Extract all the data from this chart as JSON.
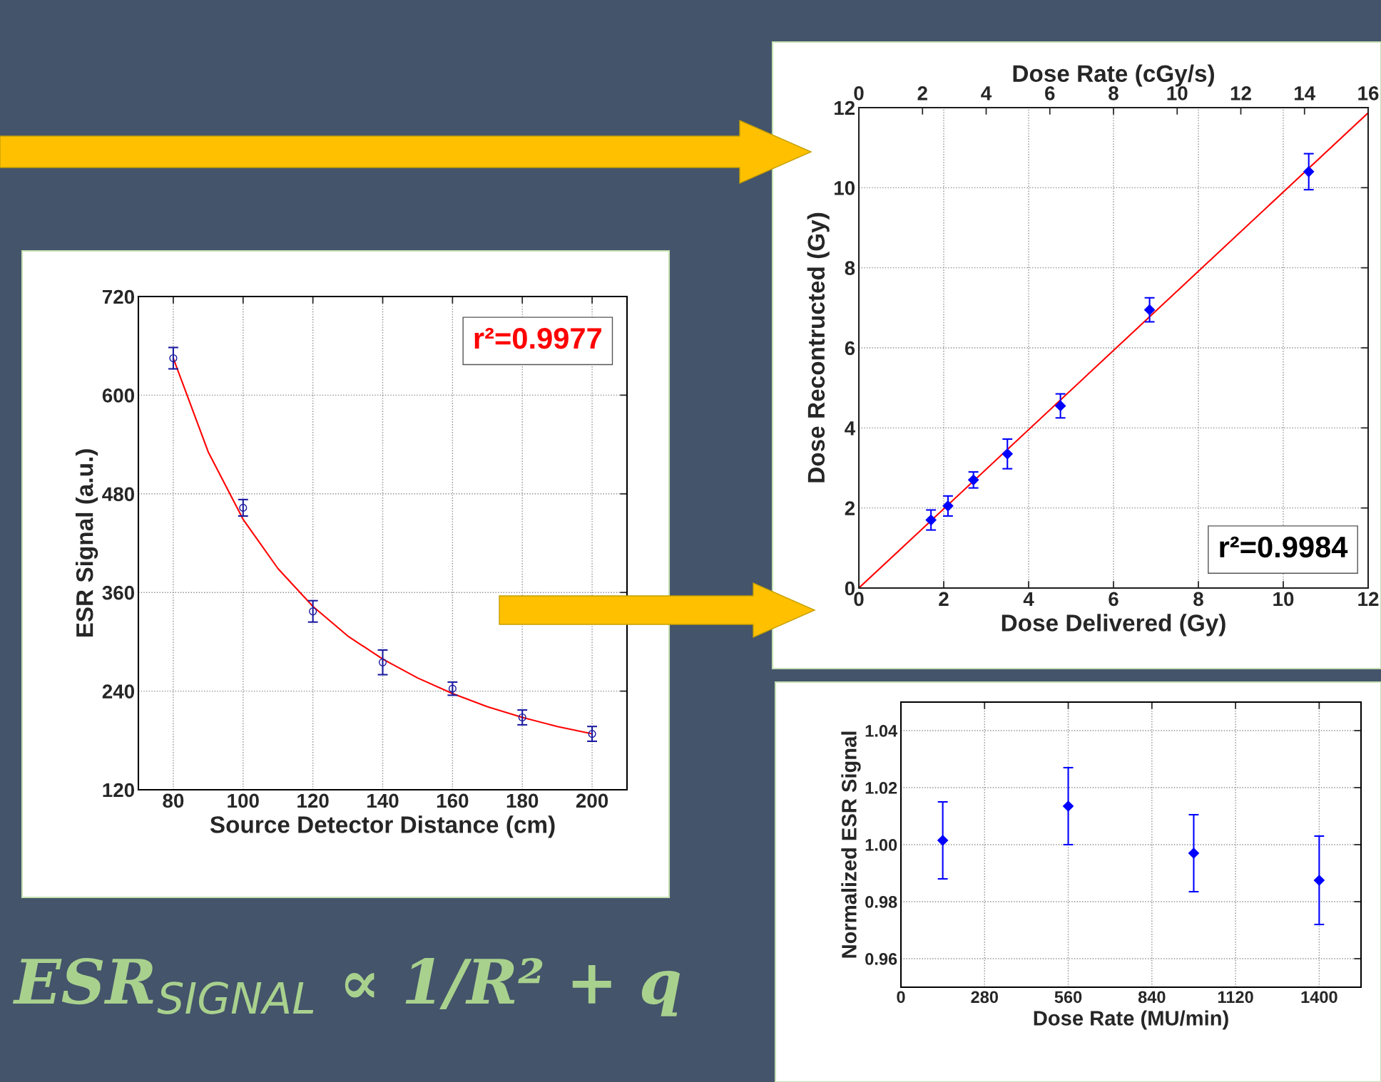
{
  "chart_data": [
    {
      "type": "scatter",
      "xlabel": "Source Detector Distance (cm)",
      "ylabel": "ESR Signal (a.u.)",
      "xlim": [
        70,
        210
      ],
      "ylim": [
        120,
        720
      ],
      "xticks": [
        80,
        100,
        120,
        140,
        160,
        180,
        200
      ],
      "yticks": [
        120,
        240,
        360,
        480,
        600,
        720
      ],
      "grid": true,
      "annotations": [
        "r²=0.9977",
        "ESR$_{SIGNAL}$ ∝ 1/R² + q"
      ],
      "series": [
        {
          "marker": "circle",
          "color": "#1a1aa0",
          "x": [
            80,
            100,
            120,
            140,
            160,
            180,
            200
          ],
          "values": [
            645,
            463,
            337,
            275,
            243,
            208,
            188
          ],
          "errors": [
            13,
            10,
            13,
            15,
            8,
            9,
            9
          ]
        },
        {
          "type": "line",
          "color": "#ff0000",
          "x": [
            80,
            90,
            100,
            110,
            120,
            130,
            140,
            150,
            160,
            170,
            180,
            190,
            200
          ],
          "values": [
            645,
            531,
            449,
            389,
            343,
            307,
            279,
            256,
            237,
            221,
            208,
            197,
            188
          ]
        }
      ]
    },
    {
      "type": "scatter",
      "xlabel": "Dose Delivered (Gy)",
      "ylabel": "Dose Recontructed (Gy)",
      "x2label": "Dose Rate (cGy/s)",
      "xlim": [
        0,
        12
      ],
      "ylim": [
        0,
        12
      ],
      "xticks": [
        0,
        2,
        4,
        6,
        8,
        10,
        12
      ],
      "yticks": [
        0,
        2,
        4,
        6,
        8,
        10,
        12
      ],
      "x2lim": [
        0,
        16
      ],
      "x2ticks": [
        0,
        2,
        4,
        6,
        8,
        10,
        12,
        14,
        16
      ],
      "grid": true,
      "annotations": [
        "r²=0.9984"
      ],
      "series": [
        {
          "marker": "diamond",
          "color": "#0000ff",
          "x": [
            1.7,
            2.1,
            2.7,
            3.5,
            4.75,
            6.85,
            10.6
          ],
          "values": [
            1.7,
            2.05,
            2.7,
            3.35,
            4.55,
            6.95,
            10.4
          ],
          "errors": [
            0.25,
            0.25,
            0.2,
            0.37,
            0.3,
            0.3,
            0.45
          ]
        },
        {
          "type": "line",
          "color": "#ff0000",
          "x": [
            0,
            12
          ],
          "values": [
            0,
            11.87
          ]
        }
      ]
    },
    {
      "type": "scatter",
      "xlabel": "Dose Rate (MU/min)",
      "ylabel": "Normalized ESR Signal",
      "xlim": [
        0,
        1540
      ],
      "ylim": [
        0.95,
        1.05
      ],
      "xticks": [
        0,
        280,
        560,
        840,
        1120,
        1400
      ],
      "yticks": [
        {
          "value": 0.96,
          "label": "0.96"
        },
        {
          "value": 0.98,
          "label": "0.98"
        },
        {
          "value": 1.0,
          "label": "1.00"
        },
        {
          "value": 1.02,
          "label": "1.02"
        },
        {
          "value": 1.04,
          "label": "1.04"
        }
      ],
      "grid": true,
      "series": [
        {
          "marker": "diamond",
          "color": "#0000ff",
          "x": [
            140,
            560,
            980,
            1400
          ],
          "values": [
            1.0015,
            1.0135,
            0.997,
            0.9875
          ],
          "errors": [
            0.0135,
            0.0135,
            0.0135,
            0.0155
          ]
        }
      ]
    }
  ]
}
